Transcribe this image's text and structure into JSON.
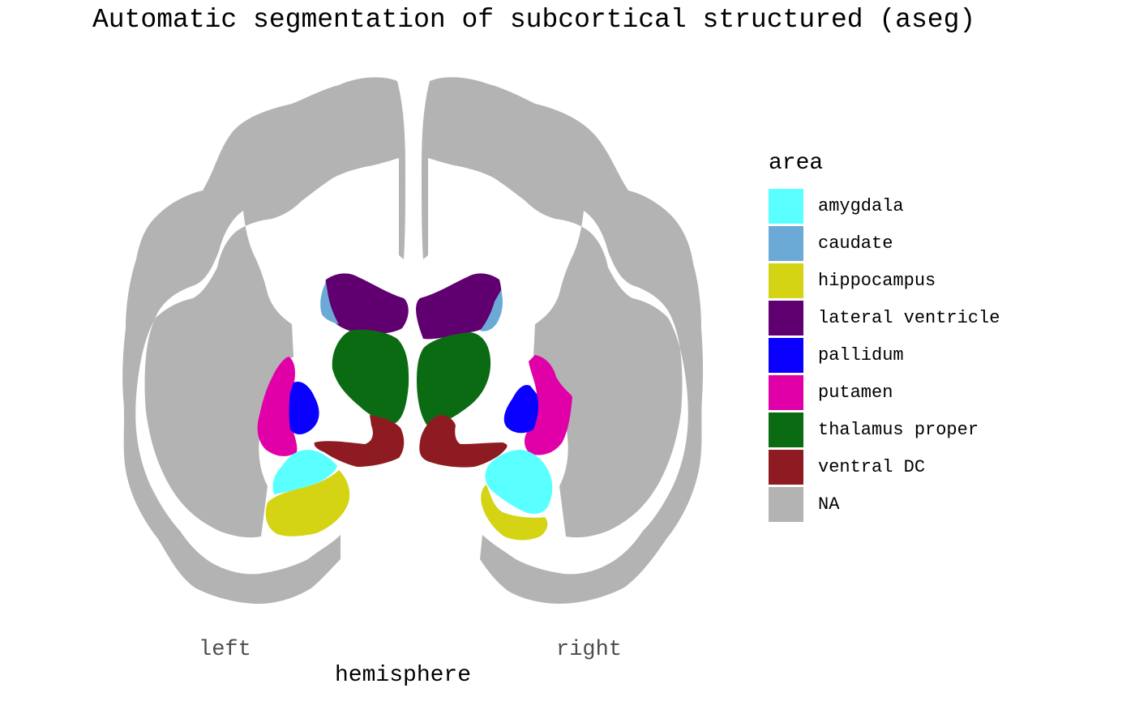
{
  "title": "Automatic segmentation of subcortical structured (aseg)",
  "axis": {
    "title": "hemisphere",
    "ticks": [
      "left",
      "right"
    ]
  },
  "legend": {
    "title": "area",
    "items": [
      {
        "label": "amygdala",
        "color": "#5AFFFF"
      },
      {
        "label": "caudate",
        "color": "#6BAAD6"
      },
      {
        "label": "hippocampus",
        "color": "#D4D414"
      },
      {
        "label": "lateral ventricle",
        "color": "#600070"
      },
      {
        "label": "pallidum",
        "color": "#0A00FF"
      },
      {
        "label": "putamen",
        "color": "#E100A8"
      },
      {
        "label": "thalamus proper",
        "color": "#0B6B12"
      },
      {
        "label": "ventral DC",
        "color": "#8F1B22"
      },
      {
        "label": "NA",
        "color": "#B3B3B3"
      }
    ]
  }
}
